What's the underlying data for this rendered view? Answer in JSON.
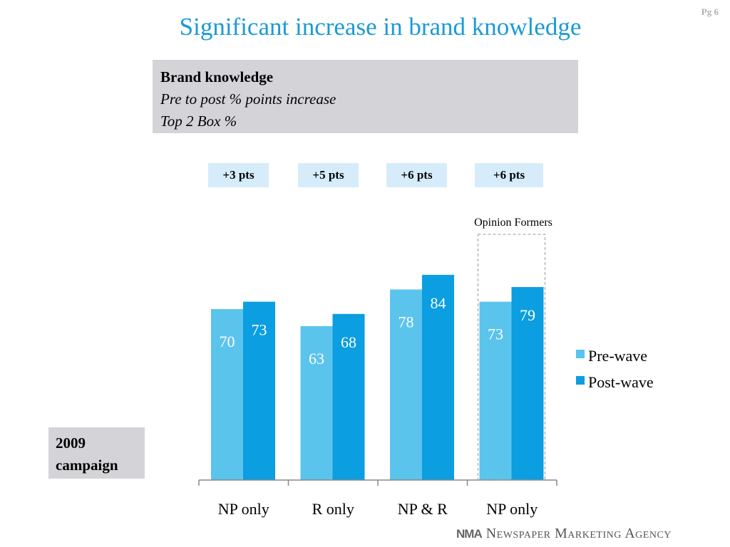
{
  "page_number": "Pg 6",
  "title": "Significant increase in brand knowledge",
  "info": {
    "heading": "Brand knowledge",
    "line1": "Pre to post % points increase",
    "line2": "Top 2 Box %"
  },
  "deltas": [
    "+3 pts",
    "+5 pts",
    "+6 pts",
    "+6 pts"
  ],
  "campaign_label": {
    "line1": "2009",
    "line2": "campaign"
  },
  "footer": {
    "logo": "NMA",
    "text": "Newspaper Marketing Agency"
  },
  "colors": {
    "title": "#1a9ad6",
    "pre": "#5bc4ec",
    "post": "#0b9ee0"
  },
  "chart_data": {
    "type": "bar",
    "categories": [
      "NP only",
      "R only",
      "NP & R",
      "NP only"
    ],
    "series": [
      {
        "name": "Pre-wave",
        "values": [
          70,
          63,
          78,
          73
        ]
      },
      {
        "name": "Post-wave",
        "values": [
          73,
          68,
          84,
          79
        ]
      }
    ],
    "annotations": [
      {
        "text": "Opinion Formers",
        "category_index": 3
      }
    ],
    "legend": "right",
    "grid": false
  }
}
